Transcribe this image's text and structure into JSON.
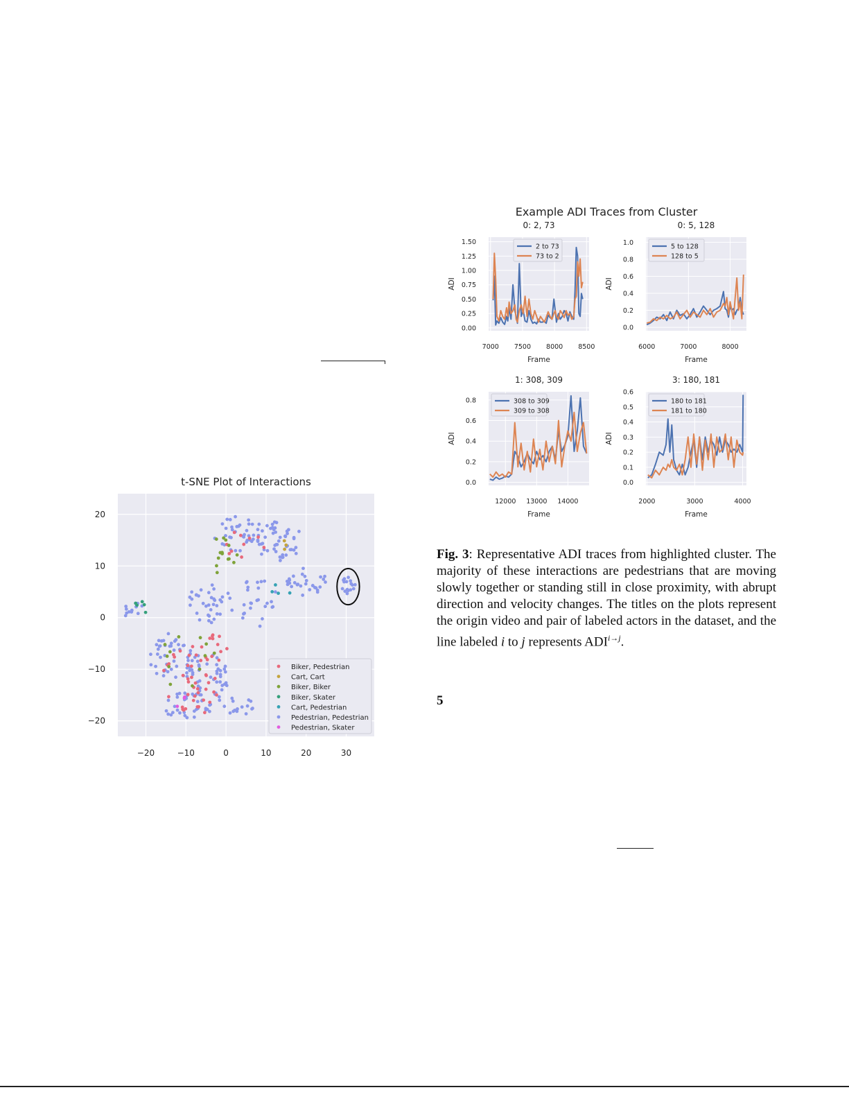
{
  "figure_title": "Example ADI Traces from Cluster",
  "caption": {
    "label": "Fig. 3",
    "text1": ": Representative ADI traces from highlighted cluster. The majority of these interactions are pedestrians that are moving slowly together or standing still in close proximity, with abrupt direction and velocity changes. The titles on the plots represent the origin video and pair of labeled actors in the dataset, and the line labeled ",
    "var_i": "i",
    "mid": " to ",
    "var_j": "j",
    "text2": " represents ADI",
    "sup": "i→j",
    "end": "."
  },
  "page_number": "5",
  "colors": {
    "blue": "#4c72b0",
    "orange": "#dd8452",
    "plot_bg": "#eaeaf2"
  },
  "chart_data": [
    {
      "id": "tsne",
      "type": "scatter",
      "title": "t-SNE Plot of Interactions",
      "xlim": [
        -27,
        37
      ],
      "ylim": [
        -23,
        24
      ],
      "xticks": [
        -20,
        -10,
        0,
        10,
        20,
        30
      ],
      "yticks": [
        -20,
        -10,
        0,
        10,
        20
      ],
      "xtick_labels": [
        "−20",
        "−10",
        "0",
        "10",
        "20",
        "30"
      ],
      "ytick_labels": [
        "−20",
        "−10",
        "0",
        "10",
        "20"
      ],
      "legend_position": "lower-right",
      "categories": [
        {
          "name": "Biker, Pedestrian",
          "color": "#e8697b"
        },
        {
          "name": "Cart, Cart",
          "color": "#c4a43d"
        },
        {
          "name": "Biker, Biker",
          "color": "#7fa33a"
        },
        {
          "name": "Biker, Skater",
          "color": "#35a07b"
        },
        {
          "name": "Cart, Pedestrian",
          "color": "#36a2b4"
        },
        {
          "name": "Pedestrian, Pedestrian",
          "color": "#8b98ea"
        },
        {
          "name": "Pedestrian, Skater",
          "color": "#e25ce0"
        }
      ],
      "clusters": [
        {
          "cat": 5,
          "cx": 3,
          "cy": 16,
          "rx": 7,
          "ry": 4,
          "n": 40
        },
        {
          "cat": 5,
          "cx": 13,
          "cy": 15,
          "rx": 6,
          "ry": 4,
          "n": 45
        },
        {
          "cat": 5,
          "cx": 20,
          "cy": 7,
          "rx": 5,
          "ry": 3,
          "n": 30
        },
        {
          "cat": 5,
          "cx": 30.5,
          "cy": 6,
          "rx": 1.8,
          "ry": 2,
          "n": 16
        },
        {
          "cat": 5,
          "cx": -4,
          "cy": 3,
          "rx": 6,
          "ry": 4,
          "n": 35
        },
        {
          "cat": 5,
          "cx": -14,
          "cy": -8,
          "rx": 6,
          "ry": 5,
          "n": 45
        },
        {
          "cat": 5,
          "cx": -5,
          "cy": -12,
          "rx": 6,
          "ry": 5,
          "n": 45
        },
        {
          "cat": 5,
          "cx": -10,
          "cy": -17,
          "rx": 7,
          "ry": 2.5,
          "n": 35
        },
        {
          "cat": 5,
          "cx": 3,
          "cy": -17,
          "rx": 4,
          "ry": 2,
          "n": 15
        },
        {
          "cat": 5,
          "cx": 8,
          "cy": 3,
          "rx": 5,
          "ry": 5,
          "n": 25
        },
        {
          "cat": 5,
          "cx": -23,
          "cy": 1,
          "rx": 3,
          "ry": 2,
          "n": 12
        },
        {
          "cat": 0,
          "cx": -8,
          "cy": -12,
          "rx": 8,
          "ry": 7,
          "n": 45
        },
        {
          "cat": 0,
          "cx": 5,
          "cy": 14,
          "rx": 6,
          "ry": 3,
          "n": 10
        },
        {
          "cat": 0,
          "cx": -2,
          "cy": -5,
          "rx": 3,
          "ry": 2,
          "n": 8
        },
        {
          "cat": 2,
          "cx": 0,
          "cy": 12,
          "rx": 4,
          "ry": 4,
          "n": 14
        },
        {
          "cat": 2,
          "cx": -10,
          "cy": -7,
          "rx": 8,
          "ry": 7,
          "n": 12
        },
        {
          "cat": 1,
          "cx": 14,
          "cy": 12,
          "rx": 3,
          "ry": 3,
          "n": 3
        },
        {
          "cat": 3,
          "cx": -21,
          "cy": 2,
          "rx": 2,
          "ry": 2,
          "n": 5
        },
        {
          "cat": 4,
          "cx": 14,
          "cy": 7,
          "rx": 4,
          "ry": 3,
          "n": 4
        },
        {
          "cat": 6,
          "cx": -10,
          "cy": -16,
          "rx": 3,
          "ry": 2,
          "n": 3
        }
      ],
      "highlight": {
        "cx": 30.5,
        "cy": 6,
        "rx": 2.8,
        "ry": 3.5
      }
    },
    {
      "id": "trace1",
      "type": "line",
      "title": "0: 2, 73",
      "xlabel": "Frame",
      "ylabel": "ADI",
      "xlim": [
        6970,
        8540
      ],
      "ylim": [
        -0.05,
        1.58
      ],
      "xticks": [
        7000,
        7500,
        8000,
        8500
      ],
      "xtick_labels": [
        "7000",
        "7500",
        "8000",
        "8500"
      ],
      "yticks": [
        0,
        0.25,
        0.5,
        0.75,
        1.0,
        1.25,
        1.5
      ],
      "ytick_labels": [
        "0.00",
        "0.25",
        "0.50",
        "0.75",
        "1.00",
        "1.25",
        "1.50"
      ],
      "series": [
        {
          "name": "2 to 73",
          "color": "#4c72b0",
          "x": [
            7040,
            7060,
            7080,
            7100,
            7130,
            7160,
            7190,
            7220,
            7250,
            7270,
            7290,
            7320,
            7350,
            7380,
            7400,
            7420,
            7450,
            7480,
            7510,
            7540,
            7570,
            7600,
            7630,
            7660,
            7690,
            7720,
            7750,
            7780,
            7810,
            7840,
            7870,
            7900,
            7930,
            7960,
            7990,
            8010,
            8030,
            8060,
            8090,
            8120,
            8150,
            8180,
            8210,
            8240,
            8270,
            8300,
            8320,
            8340,
            8360,
            8380,
            8400,
            8420,
            8440
          ],
          "y": [
            0.48,
            0.9,
            0.05,
            0.12,
            0.08,
            0.18,
            0.1,
            0.06,
            0.2,
            0.12,
            0.35,
            0.15,
            0.75,
            0.3,
            0.2,
            0.08,
            1.12,
            0.2,
            0.3,
            0.12,
            0.1,
            0.3,
            0.15,
            0.08,
            0.1,
            0.07,
            0.15,
            0.1,
            0.1,
            0.12,
            0.08,
            0.22,
            0.18,
            0.15,
            0.5,
            0.3,
            0.1,
            0.25,
            0.15,
            0.2,
            0.3,
            0.25,
            0.12,
            0.28,
            0.2,
            0.15,
            0.65,
            1.4,
            1.25,
            0.25,
            0.2,
            0.6,
            0.5
          ]
        },
        {
          "name": "73 to 2",
          "color": "#dd8452",
          "x": [
            7040,
            7060,
            7080,
            7100,
            7130,
            7160,
            7190,
            7220,
            7250,
            7270,
            7290,
            7320,
            7350,
            7380,
            7400,
            7420,
            7450,
            7480,
            7510,
            7540,
            7570,
            7600,
            7630,
            7660,
            7690,
            7720,
            7750,
            7780,
            7810,
            7840,
            7870,
            7900,
            7930,
            7960,
            7990,
            8010,
            8030,
            8060,
            8090,
            8120,
            8150,
            8180,
            8210,
            8240,
            8270,
            8300,
            8320,
            8340,
            8360,
            8380,
            8400,
            8420,
            8440
          ],
          "y": [
            0.5,
            1.3,
            0.85,
            0.2,
            0.12,
            0.3,
            0.2,
            0.15,
            0.35,
            0.2,
            0.45,
            0.25,
            0.3,
            0.4,
            0.15,
            0.1,
            0.3,
            0.4,
            0.25,
            0.55,
            0.2,
            0.5,
            0.25,
            0.15,
            0.3,
            0.2,
            0.1,
            0.2,
            0.15,
            0.1,
            0.18,
            0.28,
            0.2,
            0.15,
            0.25,
            0.3,
            0.2,
            0.15,
            0.3,
            0.25,
            0.18,
            0.3,
            0.22,
            0.25,
            0.15,
            0.2,
            0.5,
            0.55,
            1.15,
            0.9,
            1.2,
            0.7,
            0.8
          ]
        }
      ],
      "legend_position": "top-center"
    },
    {
      "id": "trace2",
      "type": "line",
      "title": "0: 5, 128",
      "xlabel": "Frame",
      "ylabel": "ADI",
      "xlim": [
        5980,
        8390
      ],
      "ylim": [
        -0.04,
        1.06
      ],
      "xticks": [
        6000,
        7000,
        8000
      ],
      "xtick_labels": [
        "6000",
        "7000",
        "8000"
      ],
      "yticks": [
        0,
        0.2,
        0.4,
        0.6,
        0.8,
        1.0
      ],
      "ytick_labels": [
        "0.0",
        "0.2",
        "0.4",
        "0.6",
        "0.8",
        "1.0"
      ],
      "series": [
        {
          "name": "5 to 128",
          "color": "#4c72b0",
          "x": [
            6000,
            6080,
            6160,
            6240,
            6320,
            6400,
            6480,
            6560,
            6640,
            6720,
            6800,
            6880,
            6960,
            7040,
            7120,
            7200,
            7280,
            7360,
            7440,
            7520,
            7600,
            7680,
            7760,
            7840,
            7880,
            7920,
            7960,
            8000,
            8040,
            8080,
            8120,
            8160,
            8200,
            8240,
            8280,
            8320
          ],
          "y": [
            0.03,
            0.05,
            0.08,
            0.12,
            0.1,
            0.15,
            0.08,
            0.18,
            0.1,
            0.2,
            0.14,
            0.16,
            0.1,
            0.15,
            0.22,
            0.12,
            0.18,
            0.25,
            0.2,
            0.15,
            0.2,
            0.22,
            0.25,
            0.42,
            0.22,
            0.2,
            0.12,
            0.25,
            0.2,
            0.22,
            0.15,
            0.2,
            0.22,
            0.35,
            0.2,
            0.15
          ]
        },
        {
          "name": "128 to 5",
          "color": "#dd8452",
          "x": [
            6000,
            6080,
            6160,
            6240,
            6320,
            6400,
            6480,
            6560,
            6640,
            6720,
            6800,
            6880,
            6960,
            7040,
            7120,
            7200,
            7280,
            7360,
            7440,
            7520,
            7600,
            7680,
            7760,
            7840,
            7880,
            7920,
            7960,
            8000,
            8040,
            8080,
            8120,
            8160,
            8200,
            8240,
            8280,
            8320
          ],
          "y": [
            0.05,
            0.06,
            0.1,
            0.08,
            0.12,
            0.1,
            0.14,
            0.1,
            0.12,
            0.18,
            0.1,
            0.15,
            0.2,
            0.12,
            0.18,
            0.15,
            0.12,
            0.2,
            0.15,
            0.22,
            0.12,
            0.18,
            0.2,
            0.28,
            0.25,
            0.35,
            0.15,
            0.3,
            0.2,
            0.1,
            0.35,
            0.58,
            0.2,
            0.3,
            0.1,
            0.62
          ]
        }
      ],
      "legend_position": "top-left"
    },
    {
      "id": "trace3",
      "type": "line",
      "title": "1: 308, 309",
      "xlabel": "Frame",
      "ylabel": "ADI",
      "xlim": [
        11460,
        14680
      ],
      "ylim": [
        -0.03,
        0.88
      ],
      "xticks": [
        12000,
        13000,
        14000
      ],
      "xtick_labels": [
        "12000",
        "13000",
        "14000"
      ],
      "yticks": [
        0,
        0.2,
        0.4,
        0.6,
        0.8
      ],
      "ytick_labels": [
        "0.0",
        "0.2",
        "0.4",
        "0.6",
        "0.8"
      ],
      "series": [
        {
          "name": "308 to 309",
          "color": "#4c72b0",
          "x": [
            11500,
            11600,
            11700,
            11800,
            11900,
            12000,
            12100,
            12200,
            12300,
            12400,
            12500,
            12600,
            12700,
            12800,
            12900,
            13000,
            13100,
            13200,
            13300,
            13400,
            13500,
            13600,
            13700,
            13800,
            13900,
            14000,
            14100,
            14200,
            14300,
            14400,
            14500,
            14600
          ],
          "y": [
            0.03,
            0.02,
            0.05,
            0.03,
            0.04,
            0.06,
            0.05,
            0.08,
            0.3,
            0.25,
            0.15,
            0.2,
            0.28,
            0.22,
            0.18,
            0.3,
            0.22,
            0.26,
            0.2,
            0.3,
            0.35,
            0.22,
            0.5,
            0.3,
            0.36,
            0.45,
            0.84,
            0.3,
            0.5,
            0.82,
            0.35,
            0.28
          ]
        },
        {
          "name": "309 to 308",
          "color": "#dd8452",
          "x": [
            11500,
            11600,
            11700,
            11800,
            11900,
            12000,
            12100,
            12200,
            12300,
            12400,
            12500,
            12600,
            12700,
            12800,
            12900,
            13000,
            13100,
            13200,
            13300,
            13400,
            13500,
            13600,
            13700,
            13800,
            13900,
            14000,
            14100,
            14200,
            14300,
            14400,
            14500,
            14600
          ],
          "y": [
            0.08,
            0.05,
            0.1,
            0.06,
            0.08,
            0.05,
            0.1,
            0.08,
            0.58,
            0.15,
            0.38,
            0.12,
            0.3,
            0.1,
            0.42,
            0.15,
            0.32,
            0.12,
            0.4,
            0.2,
            0.35,
            0.18,
            0.6,
            0.15,
            0.35,
            0.5,
            0.4,
            0.68,
            0.3,
            0.48,
            0.58,
            0.28
          ]
        }
      ],
      "legend_position": "top-left"
    },
    {
      "id": "trace4",
      "type": "line",
      "title": "3: 180, 181",
      "xlabel": "Frame",
      "ylabel": "ADI",
      "xlim": [
        1980,
        4080
      ],
      "ylim": [
        -0.02,
        0.6
      ],
      "xticks": [
        2000,
        3000,
        4000
      ],
      "xtick_labels": [
        "2000",
        "3000",
        "4000"
      ],
      "yticks": [
        0,
        0.1,
        0.2,
        0.3,
        0.4,
        0.5,
        0.6
      ],
      "ytick_labels": [
        "0.0",
        "0.1",
        "0.2",
        "0.3",
        "0.4",
        "0.5",
        "0.6"
      ],
      "series": [
        {
          "name": "180 to 181",
          "color": "#4c72b0",
          "x": [
            2020,
            2100,
            2180,
            2260,
            2340,
            2400,
            2440,
            2480,
            2520,
            2560,
            2620,
            2680,
            2740,
            2800,
            2860,
            2920,
            2980,
            3040,
            3100,
            3160,
            3220,
            3280,
            3340,
            3400,
            3460,
            3520,
            3580,
            3640,
            3700,
            3760,
            3820,
            3880,
            3940,
            4000,
            4010
          ],
          "y": [
            0.03,
            0.05,
            0.12,
            0.2,
            0.18,
            0.25,
            0.42,
            0.2,
            0.38,
            0.15,
            0.08,
            0.05,
            0.12,
            0.05,
            0.1,
            0.2,
            0.28,
            0.1,
            0.3,
            0.15,
            0.3,
            0.2,
            0.28,
            0.25,
            0.18,
            0.3,
            0.2,
            0.28,
            0.25,
            0.2,
            0.22,
            0.2,
            0.25,
            0.2,
            0.58
          ]
        },
        {
          "name": "181 to 180",
          "color": "#dd8452",
          "x": [
            2020,
            2100,
            2180,
            2260,
            2340,
            2400,
            2440,
            2480,
            2520,
            2560,
            2620,
            2680,
            2740,
            2800,
            2860,
            2920,
            2980,
            3040,
            3100,
            3160,
            3220,
            3280,
            3340,
            3400,
            3460,
            3520,
            3580,
            3640,
            3700,
            3760,
            3820,
            3880,
            3940,
            4000,
            4010
          ],
          "y": [
            0.05,
            0.03,
            0.08,
            0.05,
            0.1,
            0.08,
            0.12,
            0.1,
            0.15,
            0.1,
            0.08,
            0.12,
            0.05,
            0.15,
            0.3,
            0.1,
            0.32,
            0.12,
            0.3,
            0.08,
            0.28,
            0.15,
            0.32,
            0.1,
            0.3,
            0.2,
            0.22,
            0.32,
            0.15,
            0.3,
            0.1,
            0.28,
            0.2,
            0.18,
            0.2
          ]
        }
      ],
      "legend_position": "top-left"
    }
  ]
}
